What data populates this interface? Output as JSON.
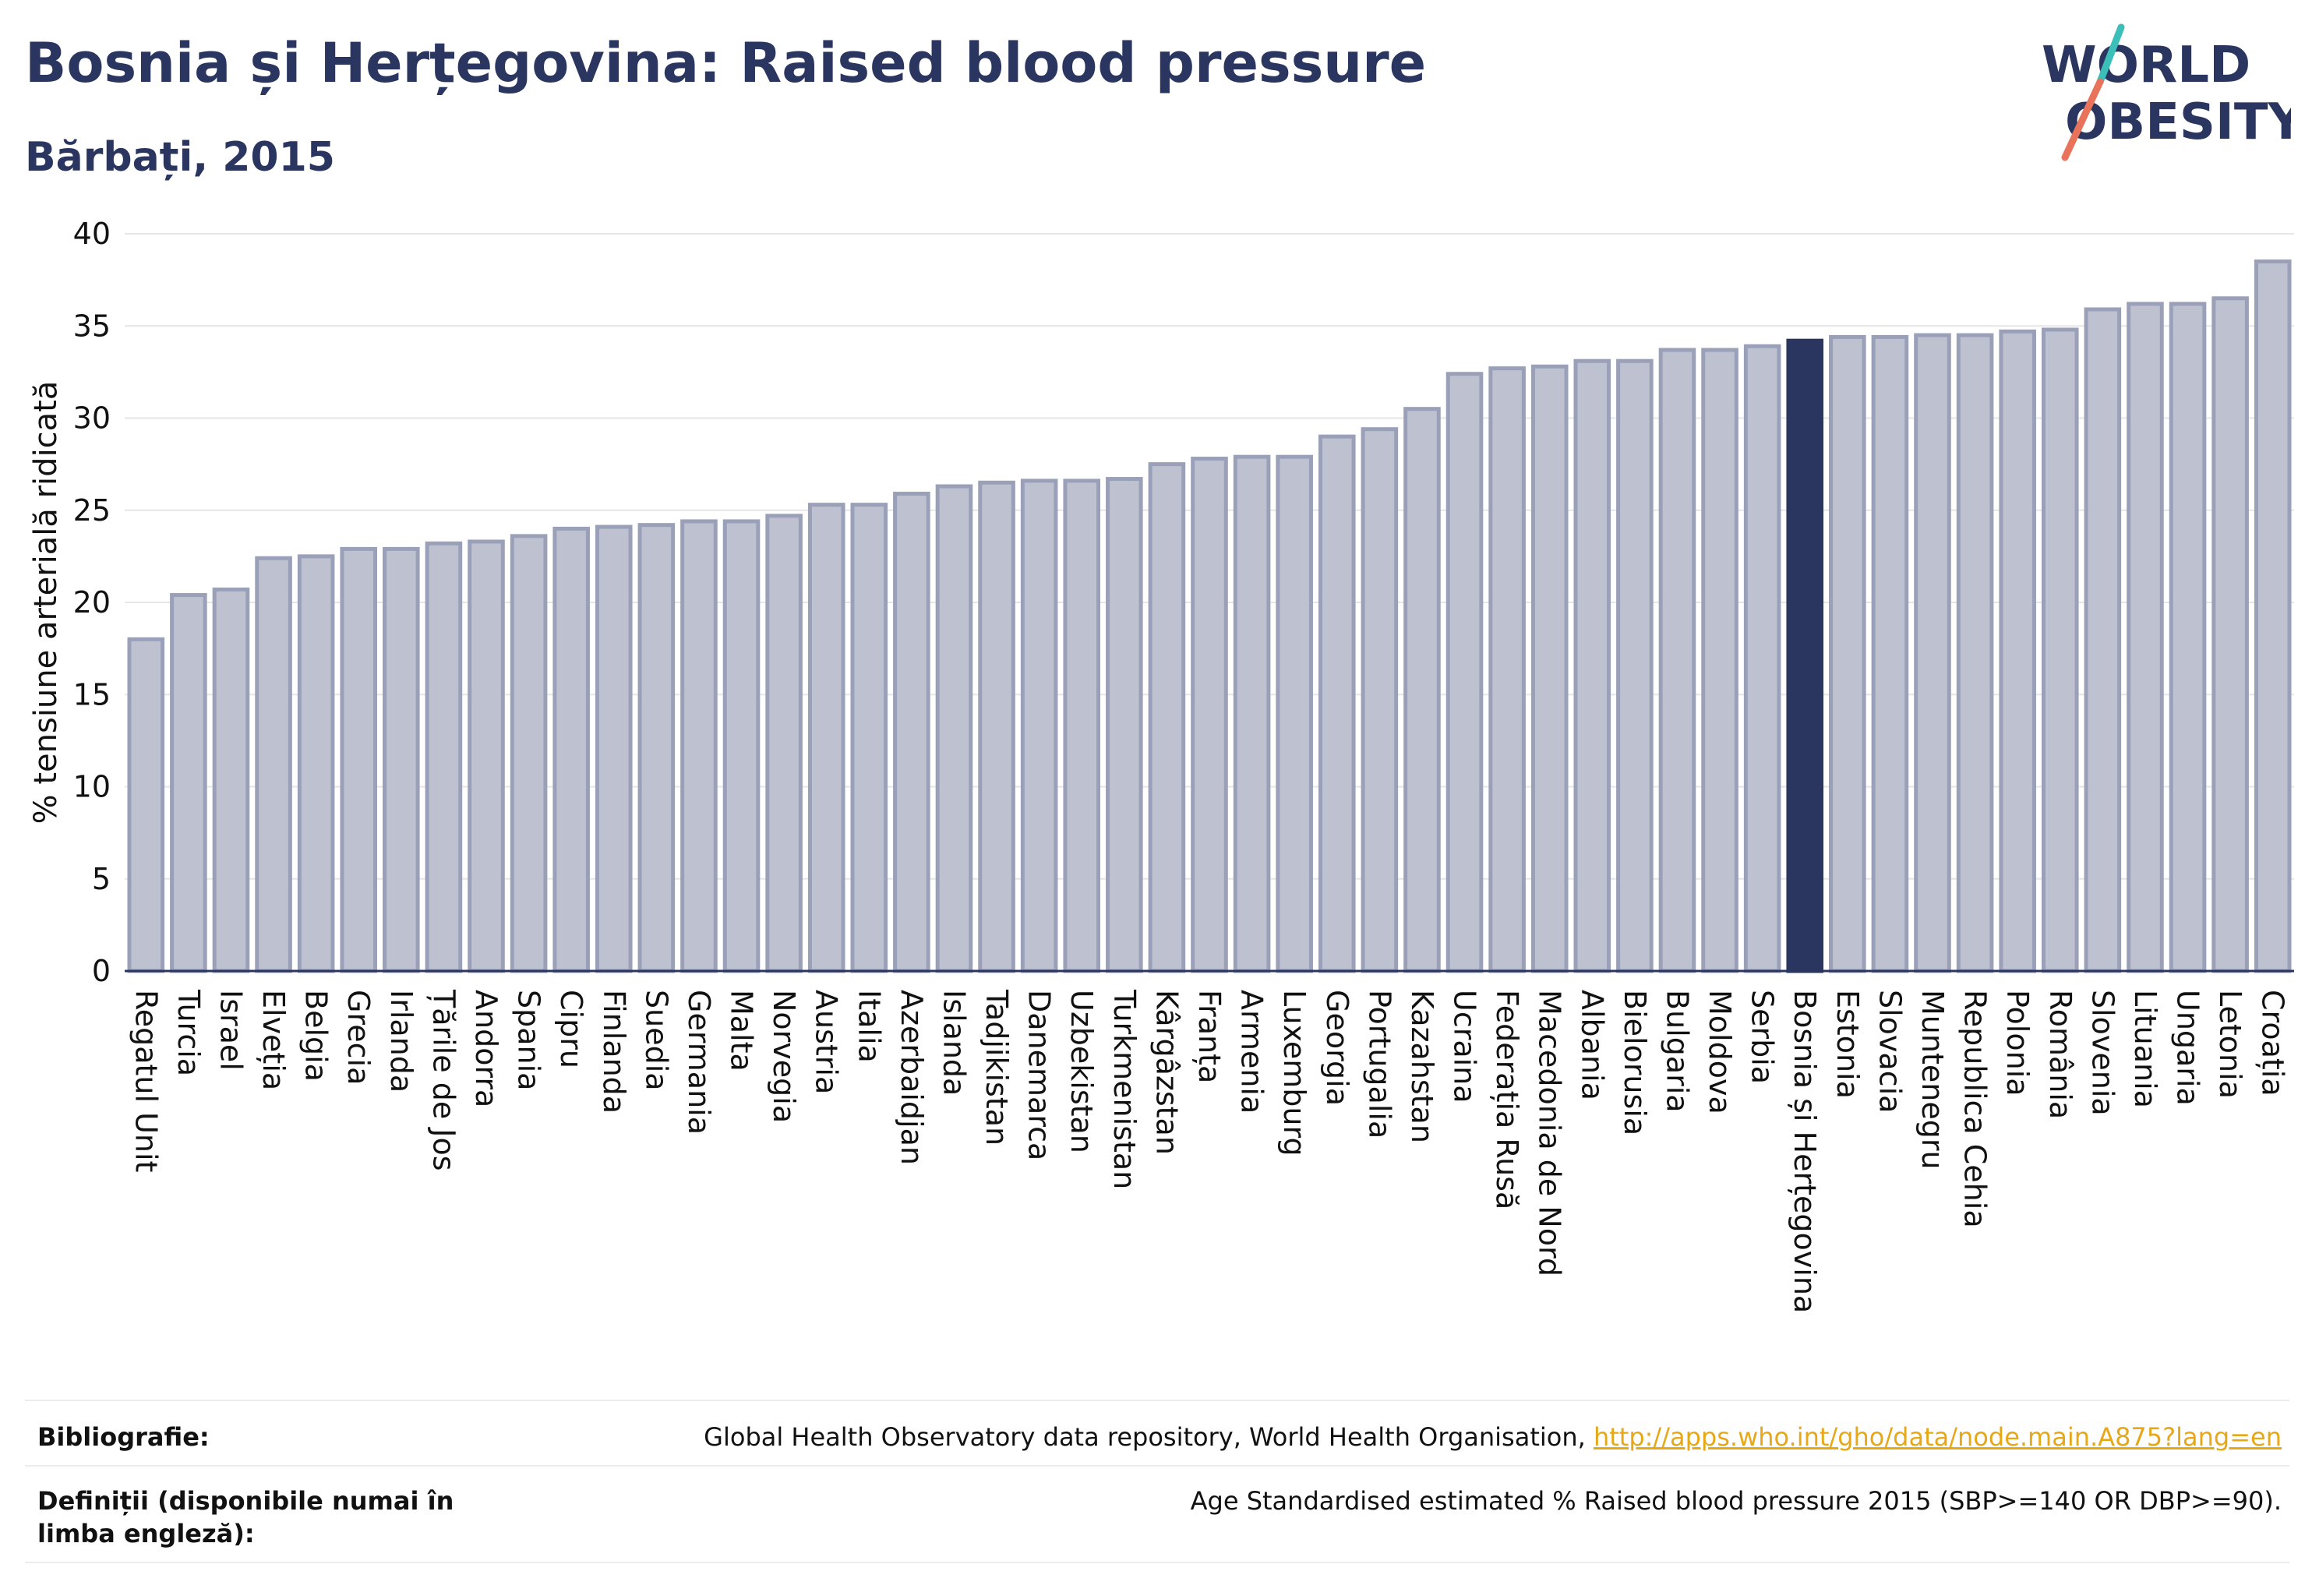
{
  "header": {
    "title": "Bosnia și Herțegovina: Raised blood pressure",
    "subtitle": "Bărbați, 2015"
  },
  "logo": {
    "line1": "WORLD",
    "line2": "OBESITY"
  },
  "colors": {
    "bar": "#bec1cf",
    "bar_stroke": "#9aa0b8",
    "highlight": "#2b3660",
    "grid": "#e6e6e6",
    "text": "#2b3660"
  },
  "chart_data": {
    "type": "bar",
    "title": "Bosnia și Herțegovina: Raised blood pressure",
    "subtitle": "Bărbați, 2015",
    "ylabel": "% tensiune arterială ridicată",
    "xlabel": "",
    "ylim": [
      0,
      40
    ],
    "yticks": [
      0,
      5,
      10,
      15,
      20,
      25,
      30,
      35,
      40
    ],
    "grid": true,
    "highlight": "Bosnia și Herțegovina",
    "categories": [
      "Regatul Unit",
      "Turcia",
      "Israel",
      "Elveția",
      "Belgia",
      "Grecia",
      "Irlanda",
      "Țările de Jos",
      "Andorra",
      "Spania",
      "Cipru",
      "Finlanda",
      "Suedia",
      "Germania",
      "Malta",
      "Norvegia",
      "Austria",
      "Italia",
      "Azerbaidjan",
      "Islanda",
      "Tadjikistan",
      "Danemarca",
      "Uzbekistan",
      "Turkmenistan",
      "Kârgâzstan",
      "Franța",
      "Armenia",
      "Luxemburg",
      "Georgia",
      "Portugalia",
      "Kazahstan",
      "Ucraina",
      "Federația Rusă",
      "Macedonia de Nord",
      "Albania",
      "Bielorusia",
      "Bulgaria",
      "Moldova",
      "Serbia",
      "Bosnia și Herțegovina",
      "Estonia",
      "Slovacia",
      "Muntenegru",
      "Republica Cehia",
      "Polonia",
      "România",
      "Slovenia",
      "Lituania",
      "Ungaria",
      "Letonia",
      "Croația"
    ],
    "values": [
      18.0,
      20.4,
      20.7,
      22.4,
      22.5,
      22.9,
      22.9,
      23.2,
      23.3,
      23.6,
      24.0,
      24.1,
      24.2,
      24.4,
      24.4,
      24.7,
      25.3,
      25.3,
      25.9,
      26.3,
      26.5,
      26.6,
      26.6,
      26.7,
      27.5,
      27.8,
      27.9,
      27.9,
      29.0,
      29.4,
      30.5,
      32.4,
      32.7,
      32.8,
      33.1,
      33.1,
      33.7,
      33.7,
      33.9,
      34.2,
      34.4,
      34.4,
      34.5,
      34.5,
      34.7,
      34.8,
      35.9,
      36.2,
      36.2,
      36.5,
      38.5
    ]
  },
  "footer": {
    "bibliography_label": "Bibliografie:",
    "bibliography_text": "Global Health Observatory data repository, World Health Organisation,",
    "bibliography_link": "http://apps.who.int/gho/data/node.main.A875?lang=en",
    "definitions_label": "Definiții (disponibile numai în limba engleză):",
    "definitions_text": "Age Standardised estimated % Raised blood pressure 2015 (SBP>=140 OR DBP>=90)."
  }
}
